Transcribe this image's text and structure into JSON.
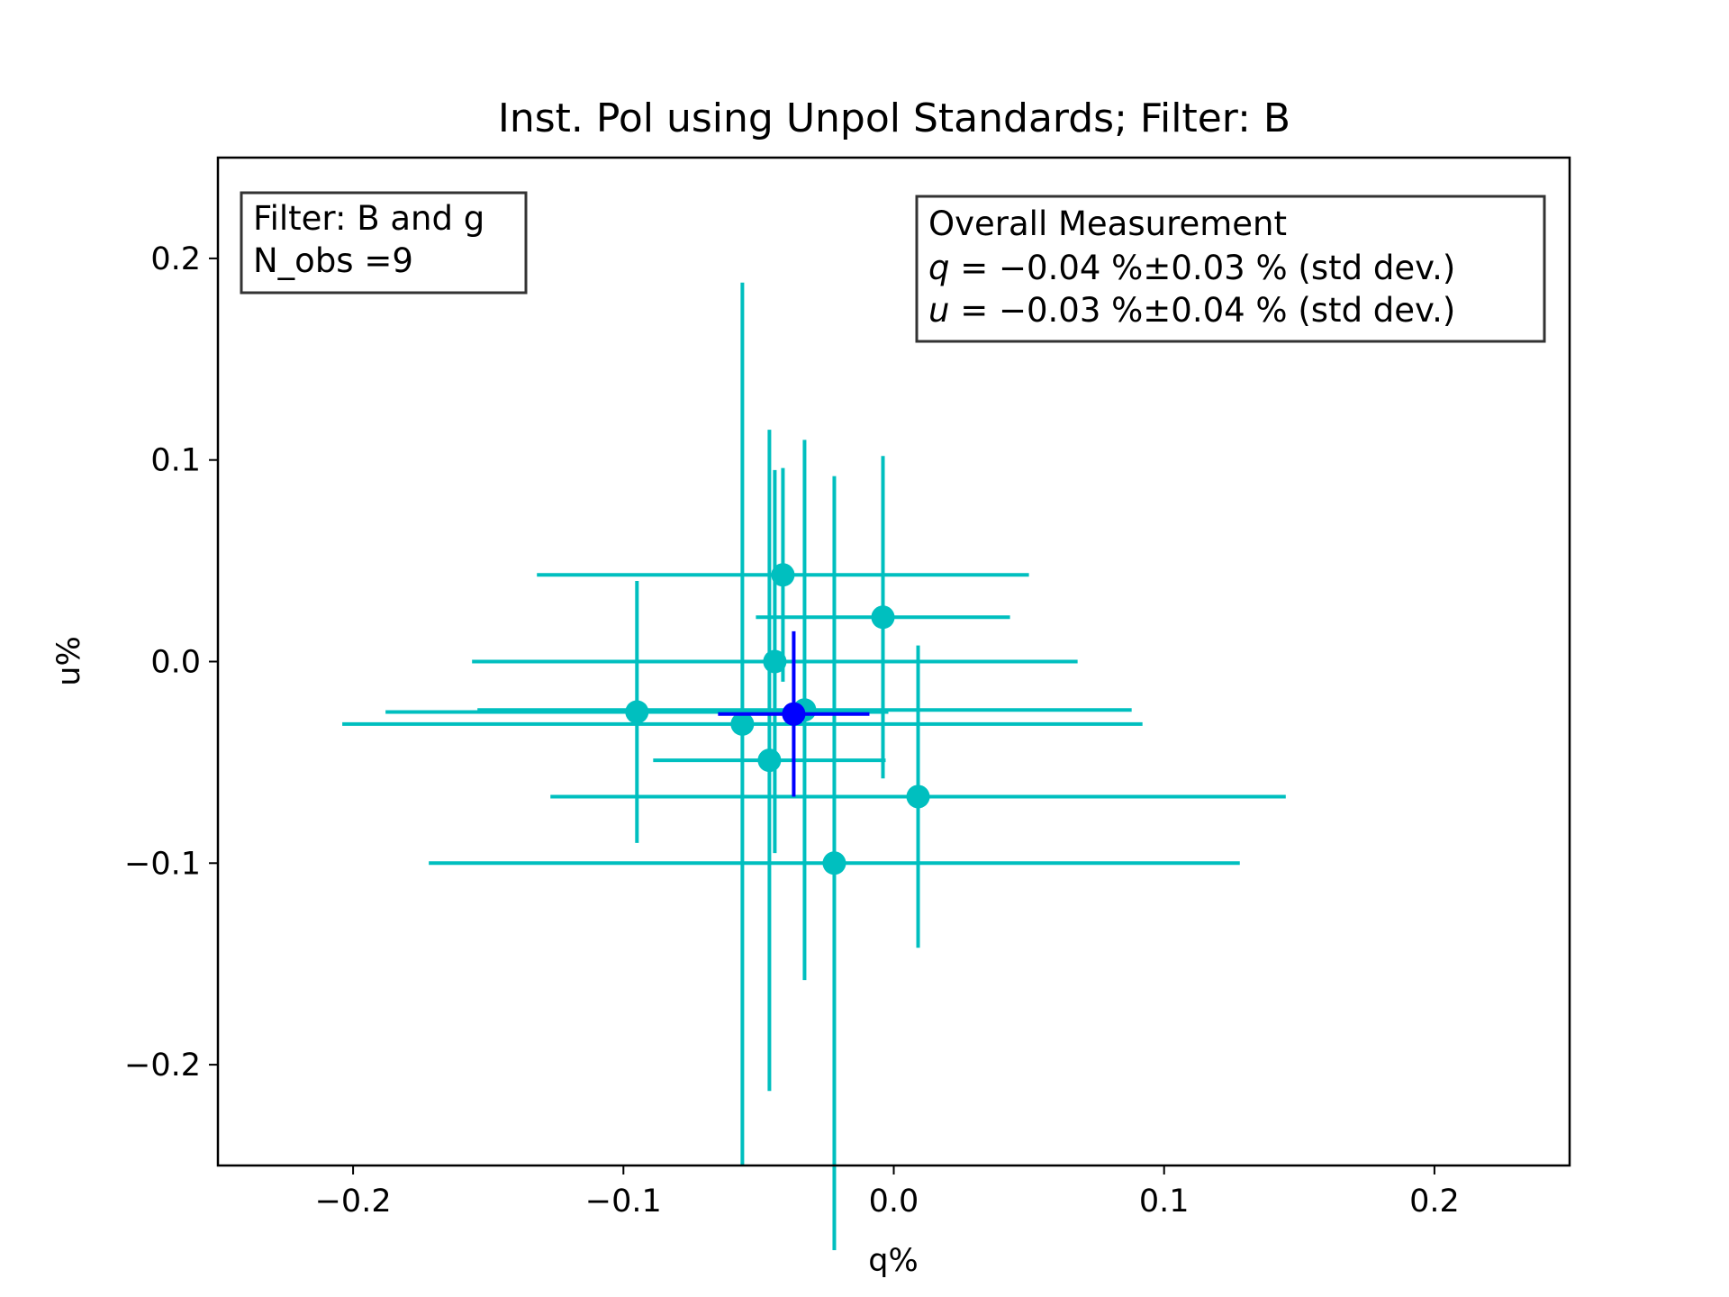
{
  "chart_data": {
    "type": "scatter",
    "title": "Inst. Pol using Unpol Standards; Filter: B",
    "xlabel": "q%",
    "ylabel": "u%",
    "xlim": [
      -0.25,
      0.25
    ],
    "ylim": [
      -0.25,
      0.25
    ],
    "xticks": [
      -0.2,
      -0.1,
      0.0,
      0.1,
      0.2
    ],
    "xtick_labels": [
      "−0.2",
      "−0.1",
      "0.0",
      "0.1",
      "0.2"
    ],
    "yticks": [
      0.2,
      0.1,
      0.0,
      -0.1,
      -0.2
    ],
    "ytick_labels": [
      "0.2",
      "0.1",
      "0.0",
      "−0.1",
      "−0.2"
    ],
    "grid": false,
    "colors": {
      "observations": "#00bfbf",
      "overall": "#0000ff",
      "axes": "#000000"
    },
    "series": [
      {
        "points": [
          {
            "q": -0.041,
            "u": 0.043,
            "q_err": 0.091,
            "u_err": 0.053
          },
          {
            "q": -0.004,
            "u": 0.022,
            "q_err": 0.047,
            "u_err": 0.08
          },
          {
            "q": -0.044,
            "u": 0.0,
            "q_err": 0.112,
            "u_err": 0.095
          },
          {
            "q": -0.095,
            "u": -0.025,
            "q_err": 0.093,
            "u_err": 0.065
          },
          {
            "q": -0.033,
            "u": -0.024,
            "q_err": 0.121,
            "u_err": 0.134
          },
          {
            "q": -0.056,
            "u": -0.031,
            "q_err": 0.148,
            "u_err": 0.219
          },
          {
            "q": -0.046,
            "u": -0.049,
            "q_err": 0.043,
            "u_err": 0.164
          },
          {
            "q": 0.009,
            "u": -0.067,
            "q_err": 0.136,
            "u_err": 0.075
          },
          {
            "q": -0.022,
            "u": -0.1,
            "q_err": 0.15,
            "u_err": 0.192
          }
        ]
      },
      {
        "points": [
          {
            "q": -0.037,
            "u": -0.026,
            "q_err": 0.028,
            "u_err": 0.041
          }
        ]
      }
    ]
  },
  "annotations": {
    "left_box": {
      "line1": "Filter: B and g",
      "line2": "N_obs =9"
    },
    "right_box": {
      "line1": "Overall Measurement",
      "q_symbol": "q",
      "q_rest": " = −0.04 %±0.03 % (std dev.)",
      "u_symbol": "u",
      "u_rest": " = −0.03 %±0.04 % (std dev.)"
    }
  }
}
